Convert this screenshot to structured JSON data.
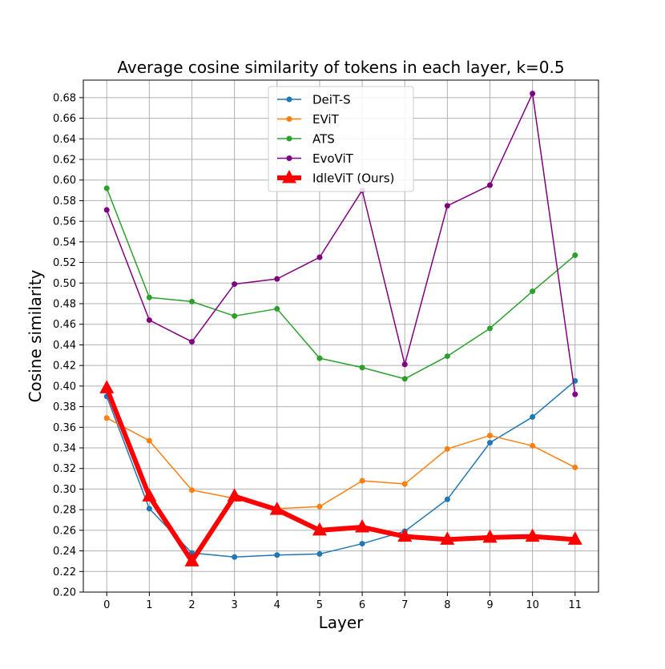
{
  "chart_data": {
    "type": "line",
    "title": "Average cosine similarity of tokens in each layer, k=0.5",
    "xlabel": "Layer",
    "ylabel": "Cosine similarity",
    "x": [
      0,
      1,
      2,
      3,
      4,
      5,
      6,
      7,
      8,
      9,
      10,
      11
    ],
    "x_tick_labels": [
      "0",
      "1",
      "2",
      "3",
      "4",
      "5",
      "6",
      "7",
      "8",
      "9",
      "10",
      "11"
    ],
    "xlim": [
      -0.55,
      11.55
    ],
    "ylim": [
      0.2,
      0.697
    ],
    "y_ticks": [
      0.2,
      0.22,
      0.24,
      0.26,
      0.28,
      0.3,
      0.32,
      0.34,
      0.36,
      0.38,
      0.4,
      0.42,
      0.44,
      0.46,
      0.48,
      0.5,
      0.52,
      0.54,
      0.56,
      0.58,
      0.6,
      0.62,
      0.64,
      0.66,
      0.68
    ],
    "y_tick_labels": [
      "0.20",
      "0.22",
      "0.24",
      "0.26",
      "0.28",
      "0.30",
      "0.32",
      "0.34",
      "0.36",
      "0.38",
      "0.40",
      "0.42",
      "0.44",
      "0.46",
      "0.48",
      "0.50",
      "0.52",
      "0.54",
      "0.56",
      "0.58",
      "0.60",
      "0.62",
      "0.64",
      "0.66",
      "0.68"
    ],
    "grid": true,
    "legend_position": "top-center",
    "series": [
      {
        "name": "DeiT-S",
        "color": "#1f77b4",
        "marker": "circle",
        "values": [
          0.39,
          0.281,
          0.238,
          0.234,
          0.236,
          0.237,
          0.247,
          0.259,
          0.29,
          0.345,
          0.37,
          0.405
        ]
      },
      {
        "name": "EViT",
        "color": "#ff7f0e",
        "marker": "circle",
        "values": [
          0.369,
          0.347,
          0.299,
          0.291,
          0.281,
          0.283,
          0.308,
          0.305,
          0.339,
          0.352,
          0.342,
          0.321
        ]
      },
      {
        "name": "ATS",
        "color": "#2ca02c",
        "marker": "circle",
        "values": [
          0.592,
          0.486,
          0.482,
          0.468,
          0.475,
          0.427,
          0.418,
          0.407,
          0.429,
          0.456,
          0.492,
          0.527
        ]
      },
      {
        "name": "EvoViT",
        "color": "#800080",
        "marker": "circle",
        "values": [
          0.571,
          0.464,
          0.443,
          0.499,
          0.504,
          0.525,
          0.59,
          0.421,
          0.575,
          0.595,
          0.684,
          0.392
        ]
      },
      {
        "name": "IdleViT (Ours)",
        "color": "#ff0000",
        "marker": "triangle",
        "thick": true,
        "values": [
          0.398,
          0.293,
          0.23,
          0.293,
          0.28,
          0.26,
          0.263,
          0.254,
          0.251,
          0.253,
          0.254,
          0.251
        ]
      }
    ]
  }
}
